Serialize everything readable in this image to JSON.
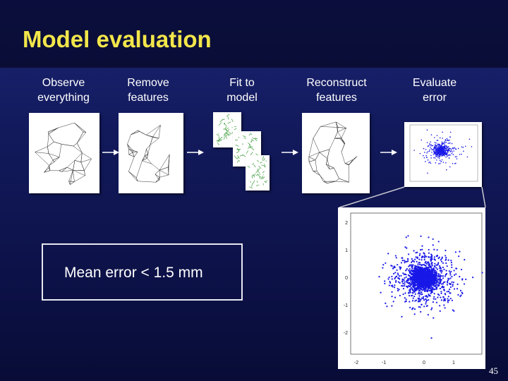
{
  "slide": {
    "title": "Model evaluation",
    "page_number": "45"
  },
  "steps": [
    {
      "label": "Observe\neverything"
    },
    {
      "label": "Remove\nfeatures"
    },
    {
      "label": "Fit to\nmodel"
    },
    {
      "label": "Reconstruct\nfeatures"
    },
    {
      "label": "Evaluate\nerror"
    }
  ],
  "callout": {
    "text": "Mean error < 1.5 mm"
  },
  "error_plot": {
    "x_ticks": [
      "-2",
      "-1",
      "0",
      "1"
    ],
    "y_ticks": [
      "2",
      "1",
      "0",
      "-1",
      "-2"
    ],
    "point_color": "#1818e8"
  },
  "colors": {
    "title": "#f2e64a",
    "background": "#121a5c",
    "mesh_green": "#3a9a3a"
  }
}
